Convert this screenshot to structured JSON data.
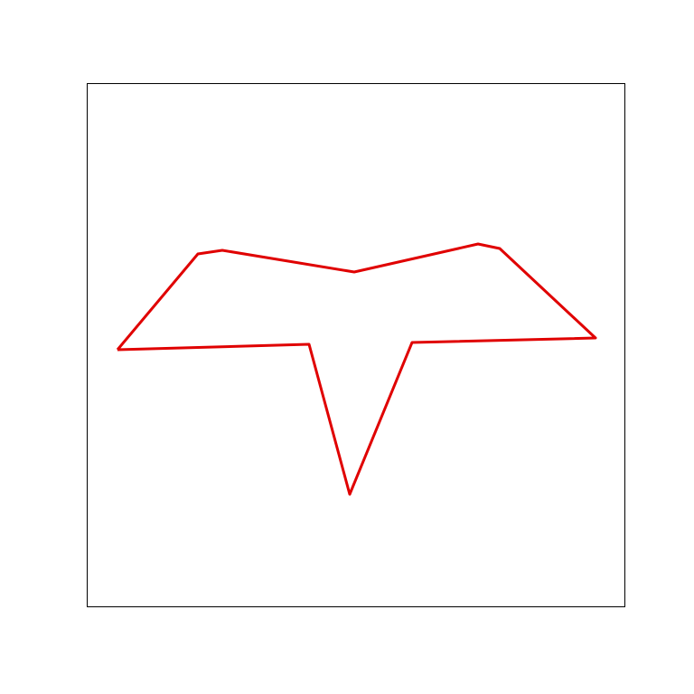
{
  "figure": {
    "frame_color": "#000000",
    "outline_color": "#e00000",
    "shape": "closed-polygon outline"
  }
}
